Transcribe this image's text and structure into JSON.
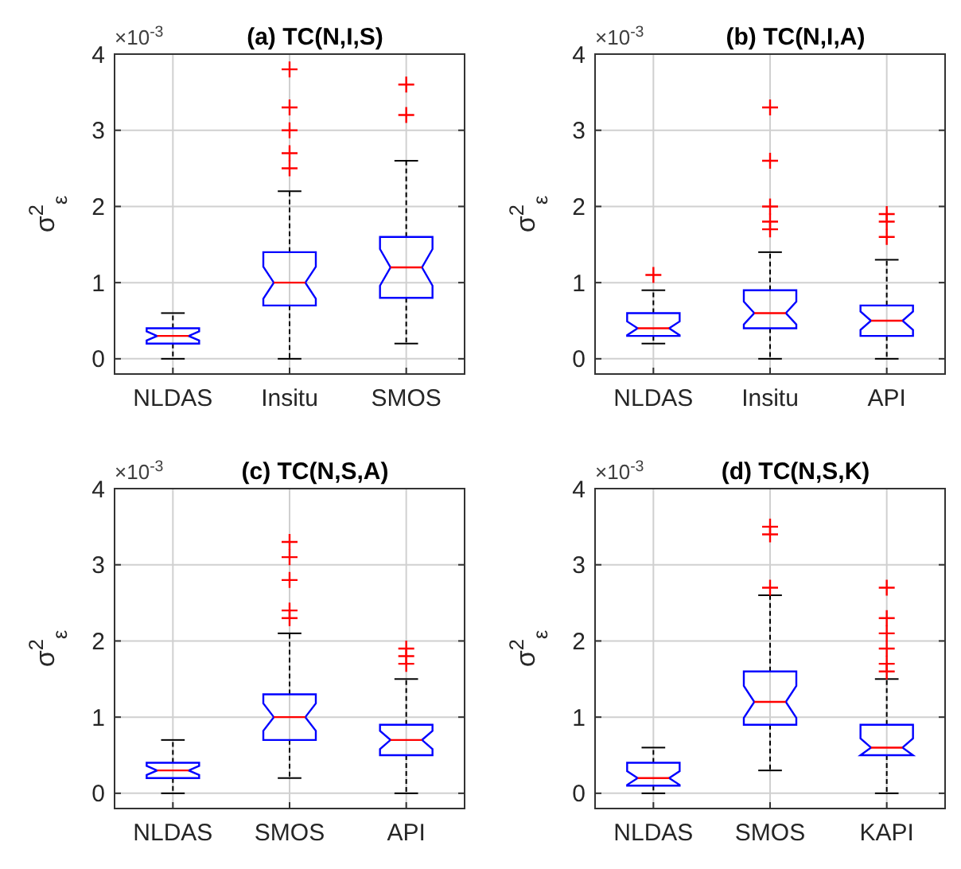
{
  "chart_data": [
    {
      "type": "box",
      "title": "(a) TC(N,I,S)",
      "ylabel": "σ$^{2}$$_{ε}$",
      "annotations": [
        "×10$^{-3}$"
      ],
      "categories": [
        "NLDAS",
        "Insitu",
        "SMOS"
      ],
      "ylim": [
        -0.2,
        4
      ],
      "yticks": [
        0,
        1,
        2,
        3,
        4
      ],
      "grid": true,
      "series": [
        {
          "color": "#0000ff",
          "boxes": [
            {
              "low": 0,
              "q1": 0.2,
              "median": 0.3,
              "q3": 0.4,
              "high": 0.6
            },
            {
              "low": 0,
              "q1": 0.7,
              "median": 1.0,
              "q3": 1.4,
              "high": 2.2,
              "outliers": [
                2.5,
                2.7,
                3.0,
                3.3,
                3.8
              ]
            },
            {
              "low": 0.2,
              "q1": 0.8,
              "median": 1.2,
              "q3": 1.6,
              "high": 2.6,
              "outliers": [
                3.2,
                3.6
              ]
            }
          ]
        }
      ]
    },
    {
      "type": "box",
      "title": "(b) TC(N,I,A)",
      "ylabel": "σ$^{2}$$_{ε}$",
      "annotations": [
        "×10$^{-3}$"
      ],
      "categories": [
        "NLDAS",
        "Insitu",
        "API"
      ],
      "ylim": [
        -0.2,
        4
      ],
      "yticks": [
        0,
        1,
        2,
        3,
        4
      ],
      "grid": true,
      "series": [
        {
          "color": "#0000ff",
          "boxes": [
            {
              "low": 0.2,
              "q1": 0.3,
              "median": 0.4,
              "q3": 0.6,
              "high": 0.9,
              "outliers": [
                1.1
              ]
            },
            {
              "low": 0,
              "q1": 0.4,
              "median": 0.6,
              "q3": 0.9,
              "high": 1.4,
              "outliers": [
                1.7,
                1.8,
                2.0,
                2.6,
                3.3
              ]
            },
            {
              "low": 0,
              "q1": 0.3,
              "median": 0.5,
              "q3": 0.7,
              "high": 1.3,
              "outliers": [
                1.6,
                1.8,
                1.9
              ]
            }
          ]
        }
      ]
    },
    {
      "type": "box",
      "title": "(c) TC(N,S,A)",
      "ylabel": "σ$^{2}$$_{ε}$",
      "annotations": [
        "×10$^{-3}$"
      ],
      "categories": [
        "NLDAS",
        "SMOS",
        "API"
      ],
      "ylim": [
        -0.2,
        4
      ],
      "yticks": [
        0,
        1,
        2,
        3,
        4
      ],
      "grid": true,
      "series": [
        {
          "color": "#0000ff",
          "boxes": [
            {
              "low": 0,
              "q1": 0.2,
              "median": 0.3,
              "q3": 0.4,
              "high": 0.7
            },
            {
              "low": 0.2,
              "q1": 0.7,
              "median": 1.0,
              "q3": 1.3,
              "high": 2.1,
              "outliers": [
                2.3,
                2.4,
                2.8,
                3.1,
                3.3
              ]
            },
            {
              "low": 0,
              "q1": 0.5,
              "median": 0.7,
              "q3": 0.9,
              "high": 1.5,
              "outliers": [
                1.7,
                1.8,
                1.9
              ]
            }
          ]
        }
      ]
    },
    {
      "type": "box",
      "title": "(d) TC(N,S,K)",
      "ylabel": "σ$^{2}$$_{ε}$",
      "annotations": [
        "×10$^{-3}$"
      ],
      "categories": [
        "NLDAS",
        "SMOS",
        "KAPI"
      ],
      "ylim": [
        -0.2,
        4
      ],
      "yticks": [
        0,
        1,
        2,
        3,
        4
      ],
      "grid": true,
      "series": [
        {
          "color": "#0000ff",
          "boxes": [
            {
              "low": 0,
              "q1": 0.1,
              "median": 0.2,
              "q3": 0.4,
              "high": 0.6
            },
            {
              "low": 0.3,
              "q1": 0.9,
              "median": 1.2,
              "q3": 1.6,
              "high": 2.6,
              "outliers": [
                2.7,
                3.4,
                3.5
              ]
            },
            {
              "low": 0,
              "q1": 0.5,
              "median": 0.6,
              "q3": 0.9,
              "high": 1.5,
              "outliers": [
                1.6,
                1.7,
                1.9,
                2.1,
                2.3,
                2.7
              ]
            }
          ]
        }
      ]
    }
  ]
}
